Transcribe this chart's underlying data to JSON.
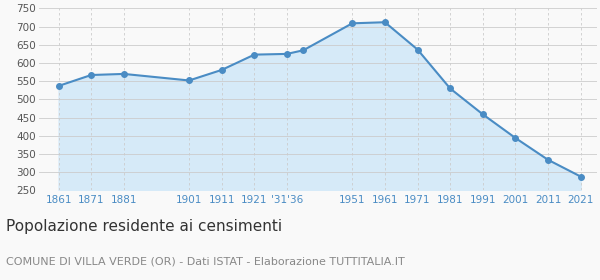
{
  "years": [
    1861,
    1871,
    1881,
    1901,
    1911,
    1921,
    1931,
    1936,
    1951,
    1961,
    1971,
    1981,
    1991,
    2001,
    2011,
    2021
  ],
  "population": [
    537,
    567,
    570,
    552,
    581,
    623,
    625,
    635,
    709,
    712,
    637,
    530,
    459,
    394,
    334,
    288
  ],
  "line_color": "#4a8cc4",
  "fill_color": "#d6eaf8",
  "marker_color": "#4a8cc4",
  "grid_color": "#cccccc",
  "background_color": "#f9f9f9",
  "title": "Popolazione residente ai censimenti",
  "subtitle": "COMUNE DI VILLA VERDE (OR) - Dati ISTAT - Elaborazione TUTTITALIA.IT",
  "title_fontsize": 11,
  "subtitle_fontsize": 8,
  "ylim": [
    250,
    750
  ],
  "yticks": [
    250,
    300,
    350,
    400,
    450,
    500,
    550,
    600,
    650,
    700,
    750
  ],
  "xtick_positions": [
    1861,
    1871,
    1881,
    1901,
    1911,
    1921,
    1931,
    1951,
    1961,
    1971,
    1981,
    1991,
    2001,
    2011,
    2021
  ],
  "xtick_labels": [
    "1861",
    "1871",
    "1881",
    "1901",
    "1911",
    "1921",
    "'31'36",
    "1951",
    "1961",
    "1971",
    "1981",
    "1991",
    "2001",
    "2011",
    "2021"
  ],
  "xlabel_color": "#4a8cc4",
  "ylabel_color": "#555555",
  "title_color": "#333333",
  "subtitle_color": "#888888",
  "xlim_left": 1855,
  "xlim_right": 2026
}
